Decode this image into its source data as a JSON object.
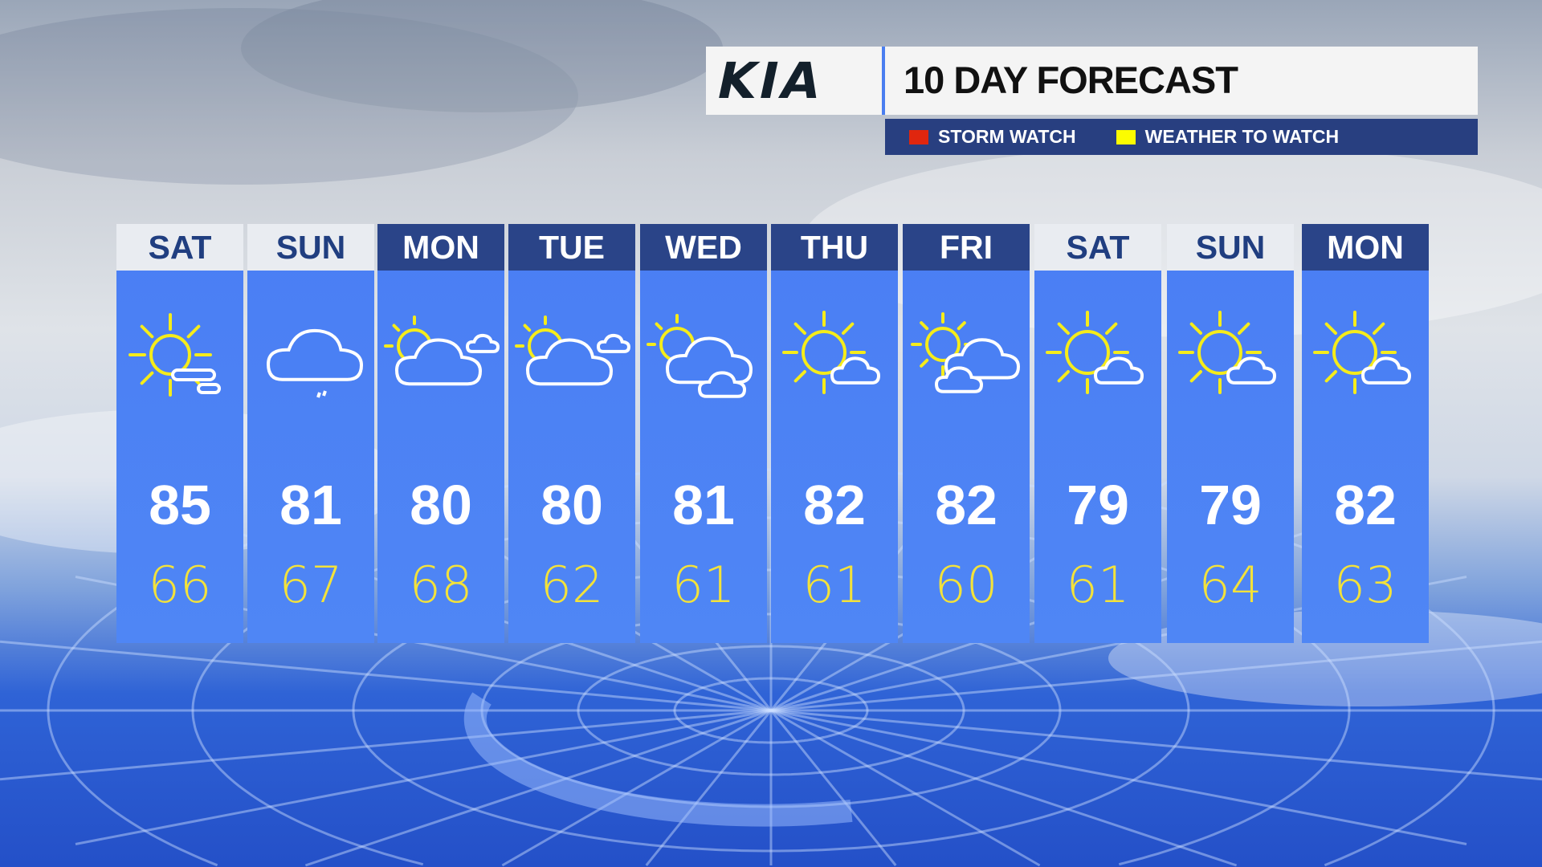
{
  "header": {
    "brand": "KIA",
    "title": "10 DAY FORECAST"
  },
  "legend": [
    {
      "label": "STORM WATCH",
      "color": "#e0260e"
    },
    {
      "label": "WEATHER TO WATCH",
      "color": "#fcfc00"
    }
  ],
  "days": [
    {
      "day": "SAT",
      "high": "85",
      "low": "66",
      "icon": "sun-fog",
      "highlight": true
    },
    {
      "day": "SUN",
      "high": "81",
      "low": "67",
      "icon": "cloud-drizzle",
      "highlight": true
    },
    {
      "day": "MON",
      "high": "80",
      "low": "68",
      "icon": "mostly-cloudy",
      "highlight": false
    },
    {
      "day": "TUE",
      "high": "80",
      "low": "62",
      "icon": "mostly-cloudy",
      "highlight": false
    },
    {
      "day": "WED",
      "high": "81",
      "low": "61",
      "icon": "partly-cloudy-two-clouds",
      "highlight": false
    },
    {
      "day": "THU",
      "high": "82",
      "low": "61",
      "icon": "sun-small-cloud",
      "highlight": false
    },
    {
      "day": "FRI",
      "high": "82",
      "low": "60",
      "icon": "sun-clouds",
      "highlight": false
    },
    {
      "day": "SAT",
      "high": "79",
      "low": "61",
      "icon": "sun-small-cloud",
      "highlight": true
    },
    {
      "day": "SUN",
      "high": "79",
      "low": "64",
      "icon": "sun-small-cloud",
      "highlight": true
    },
    {
      "day": "MON",
      "high": "82",
      "low": "63",
      "icon": "sun-small-cloud",
      "highlight": false
    }
  ],
  "colors": {
    "column": "#4a7ef4",
    "header_dark": "#2a4488",
    "header_light": "#e9ecf1",
    "low_temp": "#f3e23a"
  }
}
